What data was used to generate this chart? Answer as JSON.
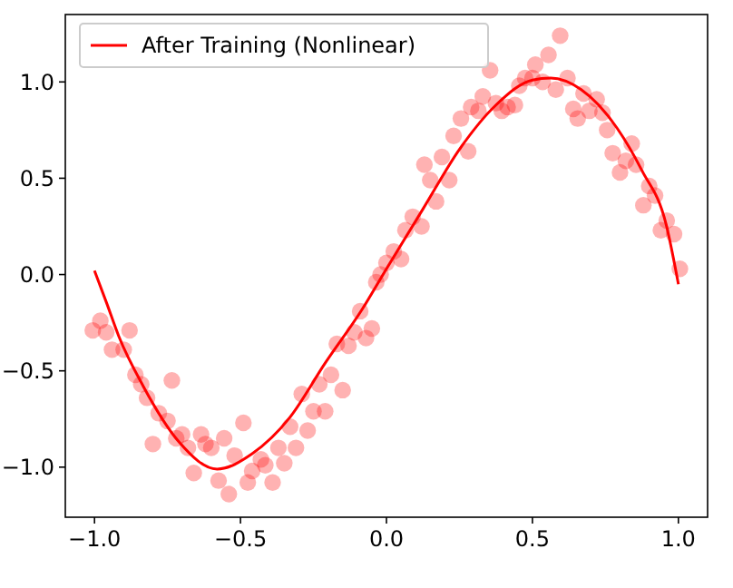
{
  "chart_data": {
    "type": "scatter",
    "legend": "top left",
    "xlim": [
      -1.1,
      1.1
    ],
    "ylim": [
      -1.26,
      1.35
    ],
    "xticks": [
      {
        "value": -1,
        "label": "−1.0"
      },
      {
        "value": -0.5,
        "label": "−0.5"
      },
      {
        "value": 0,
        "label": "0.0"
      },
      {
        "value": 0.5,
        "label": "0.5"
      },
      {
        "value": 1,
        "label": "1.0"
      }
    ],
    "yticks": [
      {
        "value": -1,
        "label": "−1.0"
      },
      {
        "value": -0.5,
        "label": "−0.5"
      },
      {
        "value": 0,
        "label": "0.0"
      },
      {
        "value": 0.5,
        "label": "0.5"
      },
      {
        "value": 1,
        "label": "1.0"
      }
    ],
    "series": [
      {
        "marker": "circle",
        "color": "#ff0000",
        "x": [
          -1.006,
          -0.98,
          -0.96,
          -0.94,
          -0.9,
          -0.88,
          -0.86,
          -0.84,
          -0.82,
          -0.8,
          -0.78,
          -0.75,
          -0.735,
          -0.72,
          -0.7,
          -0.68,
          -0.66,
          -0.635,
          -0.62,
          -0.6,
          -0.575,
          -0.556,
          -0.54,
          -0.52,
          -0.49,
          -0.475,
          -0.46,
          -0.43,
          -0.415,
          -0.39,
          -0.37,
          -0.35,
          -0.33,
          -0.31,
          -0.29,
          -0.27,
          -0.25,
          -0.23,
          -0.21,
          -0.19,
          -0.17,
          -0.15,
          -0.13,
          -0.11,
          -0.09,
          -0.07,
          -0.05,
          -0.035,
          -0.02,
          0.0,
          0.025,
          0.05,
          0.065,
          0.09,
          0.12,
          0.13,
          0.15,
          0.17,
          0.19,
          0.215,
          0.23,
          0.255,
          0.28,
          0.29,
          0.315,
          0.33,
          0.355,
          0.375,
          0.395,
          0.415,
          0.44,
          0.455,
          0.475,
          0.5,
          0.51,
          0.535,
          0.555,
          0.58,
          0.595,
          0.62,
          0.64,
          0.655,
          0.675,
          0.695,
          0.72,
          0.74,
          0.756,
          0.775,
          0.8,
          0.82,
          0.84,
          0.855,
          0.88,
          0.9,
          0.92,
          0.94,
          0.96,
          0.985,
          1.005
        ],
        "values": [
          -0.29,
          -0.24,
          -0.3,
          -0.39,
          -0.39,
          -0.29,
          -0.52,
          -0.57,
          -0.64,
          -0.88,
          -0.72,
          -0.76,
          -0.55,
          -0.85,
          -0.83,
          -0.9,
          -1.03,
          -0.83,
          -0.88,
          -0.9,
          -1.07,
          -0.85,
          -1.14,
          -0.94,
          -0.77,
          -1.08,
          -1.02,
          -0.96,
          -0.99,
          -1.08,
          -0.9,
          -0.98,
          -0.79,
          -0.9,
          -0.62,
          -0.81,
          -0.71,
          -0.57,
          -0.71,
          -0.52,
          -0.36,
          -0.6,
          -0.37,
          -0.3,
          -0.19,
          -0.33,
          -0.28,
          -0.04,
          0.0,
          0.06,
          0.12,
          0.08,
          0.23,
          0.3,
          0.25,
          0.57,
          0.49,
          0.38,
          0.61,
          0.49,
          0.72,
          0.81,
          0.64,
          0.87,
          0.85,
          0.925,
          1.06,
          0.89,
          0.85,
          0.87,
          0.88,
          0.98,
          1.02,
          1.02,
          1.09,
          1.0,
          1.14,
          0.96,
          1.24,
          1.02,
          0.86,
          0.81,
          0.94,
          0.85,
          0.91,
          0.84,
          0.75,
          0.63,
          0.53,
          0.59,
          0.68,
          0.57,
          0.36,
          0.46,
          0.41,
          0.23,
          0.28,
          0.21,
          0.03
        ]
      },
      {
        "type": "line",
        "marker": "none",
        "name": "After Training (Nonlinear)",
        "color": "#ff0000",
        "x": [
          -1.0,
          -0.958,
          -0.917,
          -0.833,
          -0.71,
          -0.58,
          -0.46,
          -0.33,
          -0.21,
          -0.083,
          0.0,
          0.125,
          0.25,
          0.375,
          0.5,
          0.5625,
          0.667,
          0.79,
          0.875,
          0.958,
          1.0
        ],
        "values": [
          0.02,
          -0.15,
          -0.32,
          -0.58,
          -0.87,
          -1.01,
          -0.93,
          -0.74,
          -0.46,
          -0.18,
          0.03,
          0.34,
          0.65,
          0.88,
          1.01,
          1.02,
          0.96,
          0.76,
          0.54,
          0.26,
          -0.05
        ]
      }
    ]
  }
}
